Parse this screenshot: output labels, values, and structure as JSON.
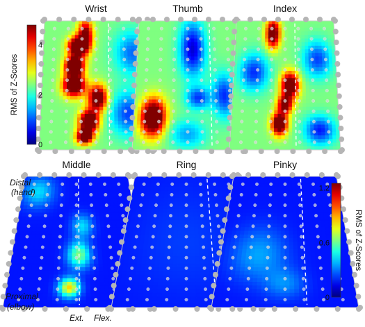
{
  "chart_data": {
    "type": "heatmap",
    "panels": [
      {
        "title": "Wrist",
        "colorbar": "A",
        "blobs": [
          {
            "u": 0.32,
            "v": 0.2,
            "su": 0.06,
            "sv": 0.05,
            "a": 3.5
          },
          {
            "u": 0.3,
            "v": 0.35,
            "su": 0.06,
            "sv": 0.05,
            "a": 3.9
          },
          {
            "u": 0.3,
            "v": 0.5,
            "su": 0.07,
            "sv": 0.06,
            "a": 3.7
          },
          {
            "u": 0.4,
            "v": 0.12,
            "su": 0.05,
            "sv": 0.09,
            "a": 2.8
          },
          {
            "u": 0.52,
            "v": 0.6,
            "su": 0.06,
            "sv": 0.07,
            "a": 3.2
          },
          {
            "u": 0.44,
            "v": 0.78,
            "su": 0.06,
            "sv": 0.06,
            "a": 3.6
          },
          {
            "u": 0.4,
            "v": 0.9,
            "su": 0.05,
            "sv": 0.04,
            "a": 3.2
          },
          {
            "u": 0.8,
            "v": 0.72,
            "su": 0.12,
            "sv": 0.12,
            "a": -1.5
          },
          {
            "u": 0.85,
            "v": 0.25,
            "su": 0.12,
            "sv": 0.12,
            "a": -1.3
          }
        ]
      },
      {
        "title": "Thumb",
        "colorbar": "A",
        "blobs": [
          {
            "u": 0.18,
            "v": 0.75,
            "su": 0.08,
            "sv": 0.1,
            "a": 3.6
          },
          {
            "u": 0.55,
            "v": 0.22,
            "su": 0.09,
            "sv": 0.15,
            "a": -2.0
          },
          {
            "u": 0.6,
            "v": 0.6,
            "su": 0.08,
            "sv": 0.06,
            "a": -1.5
          },
          {
            "u": 0.85,
            "v": 0.58,
            "su": 0.08,
            "sv": 0.12,
            "a": -1.6
          },
          {
            "u": 0.5,
            "v": 0.88,
            "su": 0.12,
            "sv": 0.08,
            "a": -1.0
          }
        ]
      },
      {
        "title": "Index",
        "colorbar": "A",
        "blobs": [
          {
            "u": 0.38,
            "v": 0.1,
            "su": 0.05,
            "sv": 0.08,
            "a": 3.0
          },
          {
            "u": 0.55,
            "v": 0.5,
            "su": 0.06,
            "sv": 0.07,
            "a": 3.3
          },
          {
            "u": 0.45,
            "v": 0.8,
            "su": 0.05,
            "sv": 0.06,
            "a": 3.5
          },
          {
            "u": 0.5,
            "v": 0.65,
            "su": 0.05,
            "sv": 0.05,
            "a": 2.6
          },
          {
            "u": 0.2,
            "v": 0.4,
            "su": 0.1,
            "sv": 0.1,
            "a": -1.6
          },
          {
            "u": 0.82,
            "v": 0.3,
            "su": 0.1,
            "sv": 0.1,
            "a": -1.5
          },
          {
            "u": 0.82,
            "v": 0.85,
            "su": 0.1,
            "sv": 0.08,
            "a": -1.7
          }
        ]
      },
      {
        "title": "Middle",
        "colorbar": "B",
        "blobs": [
          {
            "u": 0.52,
            "v": 0.6,
            "su": 0.06,
            "sv": 0.07,
            "a": 0.45
          },
          {
            "u": 0.45,
            "v": 0.85,
            "su": 0.05,
            "sv": 0.05,
            "a": 0.65
          },
          {
            "u": 0.55,
            "v": 0.38,
            "su": 0.06,
            "sv": 0.06,
            "a": 0.25
          },
          {
            "u": 0.15,
            "v": 0.12,
            "su": 0.1,
            "sv": 0.08,
            "a": 0.25
          }
        ]
      },
      {
        "title": "Ring",
        "colorbar": "B",
        "blobs": [
          {
            "u": 0.5,
            "v": 0.5,
            "su": 0.3,
            "sv": 0.3,
            "a": 0.05
          }
        ]
      },
      {
        "title": "Pinky",
        "colorbar": "B",
        "blobs": [
          {
            "u": 0.3,
            "v": 0.6,
            "su": 0.15,
            "sv": 0.14,
            "a": 0.18
          },
          {
            "u": 0.5,
            "v": 0.82,
            "su": 0.1,
            "sv": 0.08,
            "a": 0.14
          }
        ]
      }
    ],
    "colorbars": {
      "A": {
        "ylabel": "RMS of Z-Scores",
        "range": [
          0,
          4.8
        ],
        "ticks": [
          0,
          2,
          4
        ],
        "tick_labels": [
          "0",
          "2",
          "4"
        ],
        "base": 2.4
      },
      "B": {
        "ylabel": "RMS of Z-Scores",
        "range": [
          0,
          1.25
        ],
        "ticks": [
          0,
          0.6,
          1.2
        ],
        "tick_labels": [
          "0",
          "0.6",
          "1.2"
        ],
        "base": 0.18
      }
    },
    "colormap": "jet",
    "side_labels": {
      "top": [
        "Distal",
        "(hand)"
      ],
      "bottom": [
        "Proximal",
        "(elbow)"
      ]
    },
    "bottom_labels": {
      "left": "Ext.",
      "right": "Flex."
    }
  }
}
